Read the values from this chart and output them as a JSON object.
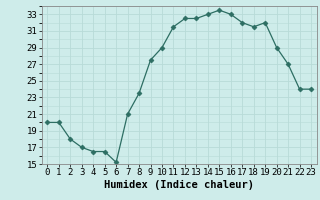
{
  "x": [
    0,
    1,
    2,
    3,
    4,
    5,
    6,
    7,
    8,
    9,
    10,
    11,
    12,
    13,
    14,
    15,
    16,
    17,
    18,
    19,
    20,
    21,
    22,
    23
  ],
  "y": [
    20,
    20,
    18,
    17,
    16.5,
    16.5,
    15.2,
    21,
    23.5,
    27.5,
    29,
    31.5,
    32.5,
    32.5,
    33,
    33.5,
    33,
    32,
    31.5,
    32,
    29,
    27,
    24,
    24
  ],
  "line_color": "#2d6e63",
  "marker": "D",
  "marker_size": 2.5,
  "bg_color": "#ceecea",
  "grid_color": "#b8dbd8",
  "xlabel": "Humidex (Indice chaleur)",
  "xlim": [
    -0.5,
    23.5
  ],
  "ylim": [
    15,
    34
  ],
  "yticks": [
    15,
    17,
    19,
    21,
    23,
    25,
    27,
    29,
    31,
    33
  ],
  "xticks": [
    0,
    1,
    2,
    3,
    4,
    5,
    6,
    7,
    8,
    9,
    10,
    11,
    12,
    13,
    14,
    15,
    16,
    17,
    18,
    19,
    20,
    21,
    22,
    23
  ],
  "xlabel_fontsize": 7.5,
  "tick_fontsize": 6.5
}
